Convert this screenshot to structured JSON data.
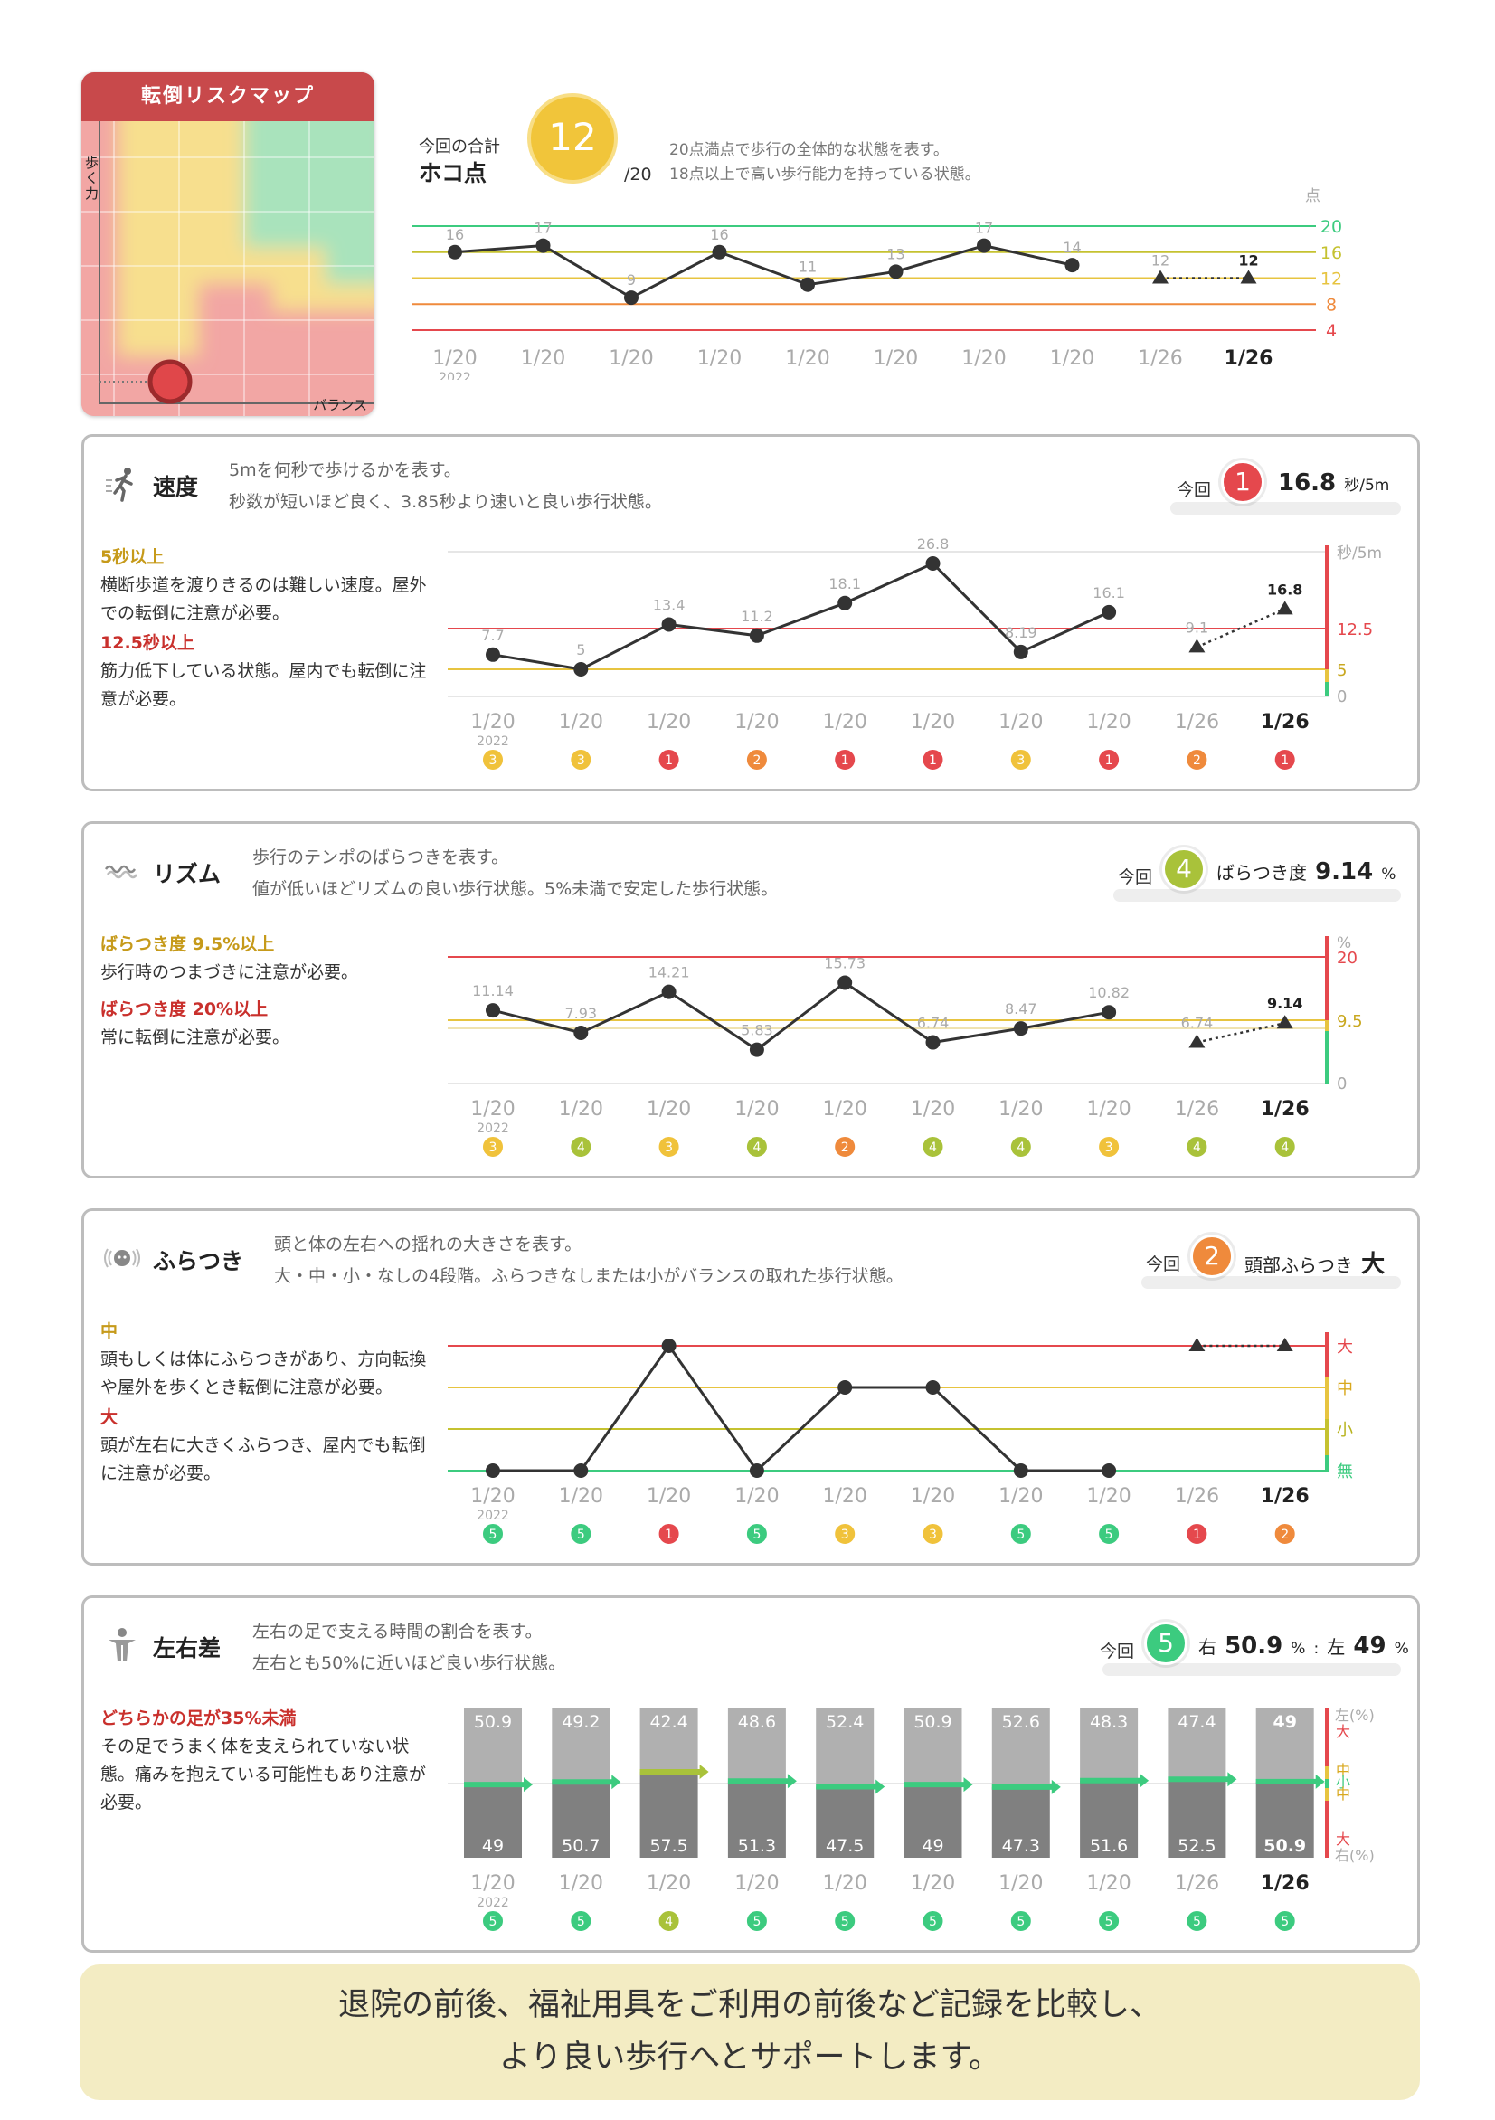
{
  "riskmap": {
    "title": "転倒リスクマップ",
    "y_label": "歩く力",
    "x_label": "バランス"
  },
  "hokoten": {
    "label": "今回の合計",
    "name": "ホコ点",
    "score": "12",
    "denom": "/20",
    "desc1": "20点満点で歩行の全体的な状態を表す。",
    "desc2": "18点以上で高い歩行能力を持っている状態。",
    "unit": "点",
    "axis_labels": [
      "20",
      "16",
      "12",
      "8",
      "4"
    ],
    "chart_data": {
      "type": "line",
      "x": [
        "1/20",
        "1/20",
        "1/20",
        "1/20",
        "1/20",
        "1/20",
        "1/20",
        "1/20",
        "1/26",
        "1/26"
      ],
      "year_label": "2022",
      "values": [
        16,
        17,
        9,
        16,
        11,
        13,
        17,
        14,
        12,
        12
      ],
      "value_labels": [
        "16",
        "17",
        "9",
        "16",
        "11",
        "13",
        "17",
        "14",
        "12",
        "12"
      ],
      "ylim": [
        4,
        20
      ]
    }
  },
  "speed": {
    "title": "速度",
    "desc1": "5mを何秒で歩けるかを表す。",
    "desc2": "秒数が短いほど良く、3.85秒より速いと良い歩行状態。",
    "now_label": "今回",
    "now_rank": "1",
    "now_value": "16.8",
    "now_unit": "秒/5m",
    "side": [
      {
        "h": "5秒以上",
        "color": "y",
        "t": "横断歩道を渡りきるのは難しい速度。屋外での転倒に注意が必要。"
      },
      {
        "h": "12.5秒以上",
        "color": "r",
        "t": "筋力低下している状態。屋内でも転倒に注意が必要。"
      }
    ],
    "axis_unit": "秒/5m",
    "axis_labels": [
      "12.5",
      "5",
      "0"
    ],
    "chart_data": {
      "type": "line",
      "x": [
        "1/20",
        "1/20",
        "1/20",
        "1/20",
        "1/20",
        "1/20",
        "1/20",
        "1/20",
        "1/26",
        "1/26"
      ],
      "year_label": "2022",
      "values": [
        7.7,
        5,
        13.4,
        11.2,
        18.1,
        26.8,
        8.19,
        16.1,
        9.1,
        16.8
      ],
      "value_labels": [
        "7.7",
        "5",
        "13.4",
        "11.2",
        "18.1",
        "26.8",
        "8.19",
        "16.1",
        "9.1",
        "16.8"
      ],
      "ranks": [
        "3",
        "3",
        "1",
        "2",
        "1",
        "1",
        "3",
        "1",
        "2",
        "1"
      ]
    }
  },
  "rhythm": {
    "title": "リズム",
    "desc1": "歩行のテンポのばらつきを表す。",
    "desc2": "値が低いほどリズムの良い歩行状態。5%未満で安定した歩行状態。",
    "now_label": "今回",
    "now_rank": "4",
    "now_prefix": "ばらつき度",
    "now_value": "9.14",
    "now_unit": "%",
    "side": [
      {
        "h": "ばらつき度 9.5%以上",
        "color": "y",
        "t": "歩行時のつまづきに注意が必要。"
      },
      {
        "h": "ばらつき度 20%以上",
        "color": "r",
        "t": "常に転倒に注意が必要。"
      }
    ],
    "axis_unit": "%",
    "axis_labels": [
      "20",
      "9.5",
      "0"
    ],
    "chart_data": {
      "type": "line",
      "x": [
        "1/20",
        "1/20",
        "1/20",
        "1/20",
        "1/20",
        "1/20",
        "1/20",
        "1/20",
        "1/26",
        "1/26"
      ],
      "year_label": "2022",
      "values": [
        11.14,
        7.93,
        14.21,
        5.83,
        15.73,
        6.74,
        8.47,
        10.82,
        6.74,
        9.14
      ],
      "value_labels": [
        "11.14",
        "7.93",
        "14.21",
        "5.83",
        "15.73",
        "6.74",
        "8.47",
        "10.82",
        "6.74",
        "9.14"
      ],
      "ranks": [
        "3",
        "4",
        "3",
        "4",
        "2",
        "4",
        "4",
        "3",
        "4",
        "4"
      ]
    }
  },
  "sway": {
    "title": "ふらつき",
    "desc1": "頭と体の左右への揺れの大きさを表す。",
    "desc2": "大・中・小・なしの4段階。ふらつきなしまたは小がバランスの取れた歩行状態。",
    "now_label": "今回",
    "now_rank": "2",
    "now_prefix": "頭部ふらつき",
    "now_value": "大",
    "side": [
      {
        "h": "中",
        "color": "y",
        "t": "頭もしくは体にふらつきがあり、方向転換や屋外を歩くとき転倒に注意が必要。"
      },
      {
        "h": "大",
        "color": "r",
        "t": "頭が左右に大きくふらつき、屋内でも転倒に注意が必要。"
      }
    ],
    "axis_labels": [
      "大",
      "中",
      "小",
      "無"
    ],
    "chart_data": {
      "type": "line",
      "x": [
        "1/20",
        "1/20",
        "1/20",
        "1/20",
        "1/20",
        "1/20",
        "1/20",
        "1/20",
        "1/26",
        "1/26"
      ],
      "year_label": "2022",
      "levels": [
        "無",
        "大",
        "小",
        "中"
      ],
      "values": [
        0,
        0,
        3,
        0,
        2,
        2,
        0,
        0,
        3,
        3
      ],
      "ranks": [
        "5",
        "5",
        "1",
        "5",
        "3",
        "3",
        "5",
        "5",
        "1",
        "2"
      ]
    }
  },
  "lr": {
    "title": "左右差",
    "desc1": "左右の足で支える時間の割合を表す。",
    "desc2": "左右とも50%に近いほど良い歩行状態。",
    "now_label": "今回",
    "now_rank": "5",
    "now_right_label": "右",
    "now_right": "50.9",
    "now_left_label": "左",
    "now_left": "49",
    "now_unit": "%",
    "now_sep": ":",
    "side": [
      {
        "h": "どちらかの足が35%未満",
        "color": "r",
        "t": "その足でうまく体を支えられていない状態。痛みを抱えている可能性もあり注意が必要。"
      }
    ],
    "axis_top": "左(%)",
    "axis_bottom": "右(%)",
    "axis_levels": [
      "大",
      "中",
      "小",
      "中",
      "大"
    ],
    "chart_data": {
      "type": "bar",
      "x": [
        "1/20",
        "1/20",
        "1/20",
        "1/20",
        "1/20",
        "1/20",
        "1/20",
        "1/20",
        "1/26",
        "1/26"
      ],
      "year_label": "2022",
      "left": [
        50.9,
        49.2,
        42.4,
        48.6,
        52.4,
        50.9,
        52.6,
        48.3,
        47.4,
        49
      ],
      "right": [
        49,
        50.7,
        57.5,
        51.3,
        47.5,
        49,
        47.3,
        51.6,
        52.5,
        50.9
      ],
      "ranks": [
        "5",
        "5",
        "4",
        "5",
        "5",
        "5",
        "5",
        "5",
        "5",
        "5"
      ]
    }
  },
  "colors": {
    "rank1": "#e5484d",
    "rank2": "#ef8a3c",
    "rank3": "#f0c23b",
    "rank4": "#a9c23a",
    "rank5": "#3ccb7f",
    "red": "#e5484d",
    "orange": "#ef8a3c",
    "yellow": "#e7c440",
    "green": "#3ccb7f"
  },
  "footer": {
    "line1": "退院の前後、福祉用具をご利用の前後など記録を比較し、",
    "line2": "より良い歩行へとサポートします。"
  }
}
